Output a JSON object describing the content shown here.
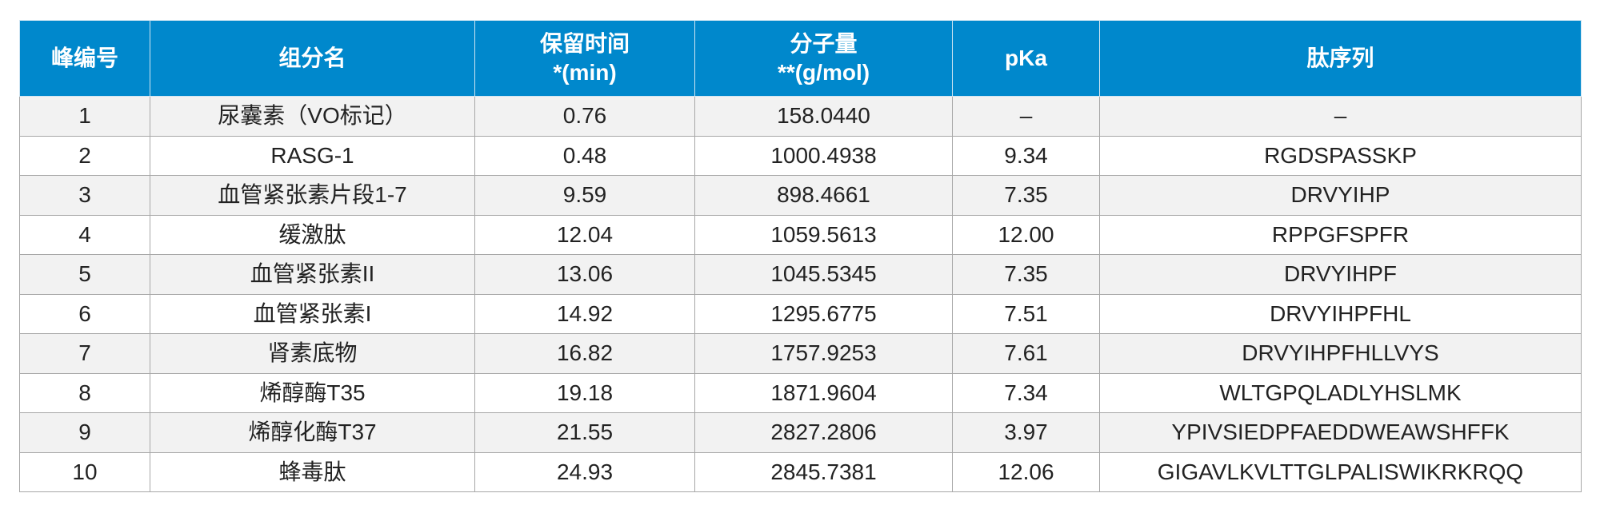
{
  "table": {
    "headers": [
      {
        "lines": [
          "峰编号"
        ]
      },
      {
        "lines": [
          "组分名"
        ]
      },
      {
        "lines": [
          "保留时间",
          "*(min)"
        ]
      },
      {
        "lines": [
          "分子量",
          "**(g/mol)"
        ]
      },
      {
        "lines": [
          "pKa"
        ]
      },
      {
        "lines": [
          "肽序列"
        ]
      }
    ],
    "rows": [
      [
        "1",
        "尿囊素（VO标记）",
        "0.76",
        "158.0440",
        "–",
        "–"
      ],
      [
        "2",
        "RASG-1",
        "0.48",
        "1000.4938",
        "9.34",
        "RGDSPASSKP"
      ],
      [
        "3",
        "血管紧张素片段1-7",
        "9.59",
        "898.4661",
        "7.35",
        "DRVYIHP"
      ],
      [
        "4",
        "缓激肽",
        "12.04",
        "1059.5613",
        "12.00",
        "RPPGFSPFR"
      ],
      [
        "5",
        "血管紧张素II",
        "13.06",
        "1045.5345",
        "7.35",
        "DRVYIHPF"
      ],
      [
        "6",
        "血管紧张素I",
        "14.92",
        "1295.6775",
        "7.51",
        "DRVYIHPFHL"
      ],
      [
        "7",
        "肾素底物",
        "16.82",
        "1757.9253",
        "7.61",
        "DRVYIHPFHLLVYS"
      ],
      [
        "8",
        "烯醇酶T35",
        "19.18",
        "1871.9604",
        "7.34",
        "WLTGPQLADLYHSLMK"
      ],
      [
        "9",
        "烯醇化酶T37",
        "21.55",
        "2827.2806",
        "3.97",
        "YPIVSIEDPFAEDDWEAWSHFFK"
      ],
      [
        "10",
        "蜂毒肽",
        "24.93",
        "2845.7381",
        "12.06",
        "GIGAVLKVLTTGLPALISWIKRKRQQ"
      ]
    ]
  },
  "colors": {
    "header_bg": "#0088cc",
    "header_text": "#ffffff",
    "stripe": "#f2f2f2",
    "border": "#a7a7a7"
  }
}
